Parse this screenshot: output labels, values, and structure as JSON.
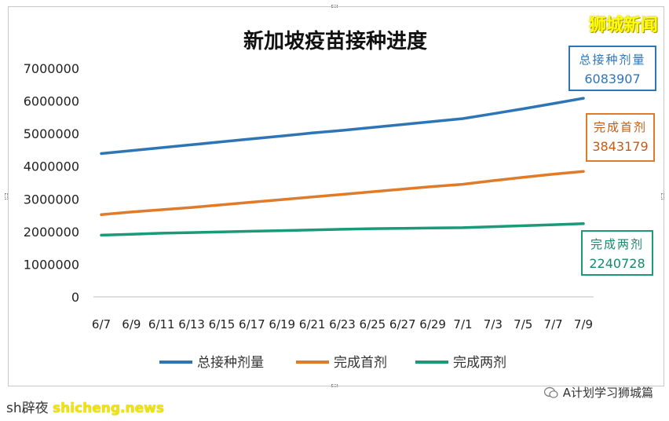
{
  "brand": "狮城新闻",
  "callouts": {
    "total": {
      "label": "总接种剂量",
      "value": "6083907"
    },
    "first": {
      "label": "完成首剂",
      "value": "3843179"
    },
    "two": {
      "label": "完成两剂",
      "value": "2240728"
    }
  },
  "footer": {
    "left_prefix": "sh",
    "left_mid": "辟夜",
    "watermark": "shicheng.news",
    "right": "A计划学习狮城篇"
  },
  "colors": {
    "total": "#2e75b6",
    "first": "#e07b2a",
    "two": "#1a9a78",
    "axis_text": "#222222"
  },
  "chart_data": {
    "type": "line",
    "title": "新加坡疫苗接种进度",
    "xlabel": "",
    "ylabel": "",
    "ylim": [
      0,
      7000000
    ],
    "yticks": [
      0,
      1000000,
      2000000,
      3000000,
      4000000,
      5000000,
      6000000,
      7000000
    ],
    "ytick_labels": [
      "0",
      "1000000",
      "2000000",
      "3000000",
      "4000000",
      "5000000",
      "6000000",
      "7000000"
    ],
    "grid": false,
    "legend_position": "bottom",
    "x_tick_labels": [
      "6/7",
      "6/9",
      "6/11",
      "6/13",
      "6/15",
      "6/17",
      "6/19",
      "6/21",
      "6/23",
      "6/25",
      "6/27",
      "6/29",
      "7/1",
      "7/3",
      "7/5",
      "7/7",
      "7/9"
    ],
    "series": [
      {
        "name": "总接种剂量",
        "color": "#2e75b6",
        "values": [
          4390000,
          4480000,
          4570000,
          4660000,
          4750000,
          4840000,
          4930000,
          5020000,
          5100000,
          5190000,
          5280000,
          5370000,
          5460000,
          5610000,
          5760000,
          5920000,
          6083907
        ]
      },
      {
        "name": "完成首剂",
        "color": "#e07b2a",
        "values": [
          2520000,
          2600000,
          2670000,
          2740000,
          2820000,
          2900000,
          2980000,
          3060000,
          3140000,
          3220000,
          3300000,
          3380000,
          3450000,
          3560000,
          3660000,
          3760000,
          3843179
        ]
      },
      {
        "name": "完成两剂",
        "color": "#1a9a78",
        "values": [
          1890000,
          1920000,
          1950000,
          1970000,
          1990000,
          2010000,
          2030000,
          2050000,
          2070000,
          2090000,
          2100000,
          2110000,
          2120000,
          2150000,
          2180000,
          2210000,
          2240728
        ]
      }
    ]
  }
}
